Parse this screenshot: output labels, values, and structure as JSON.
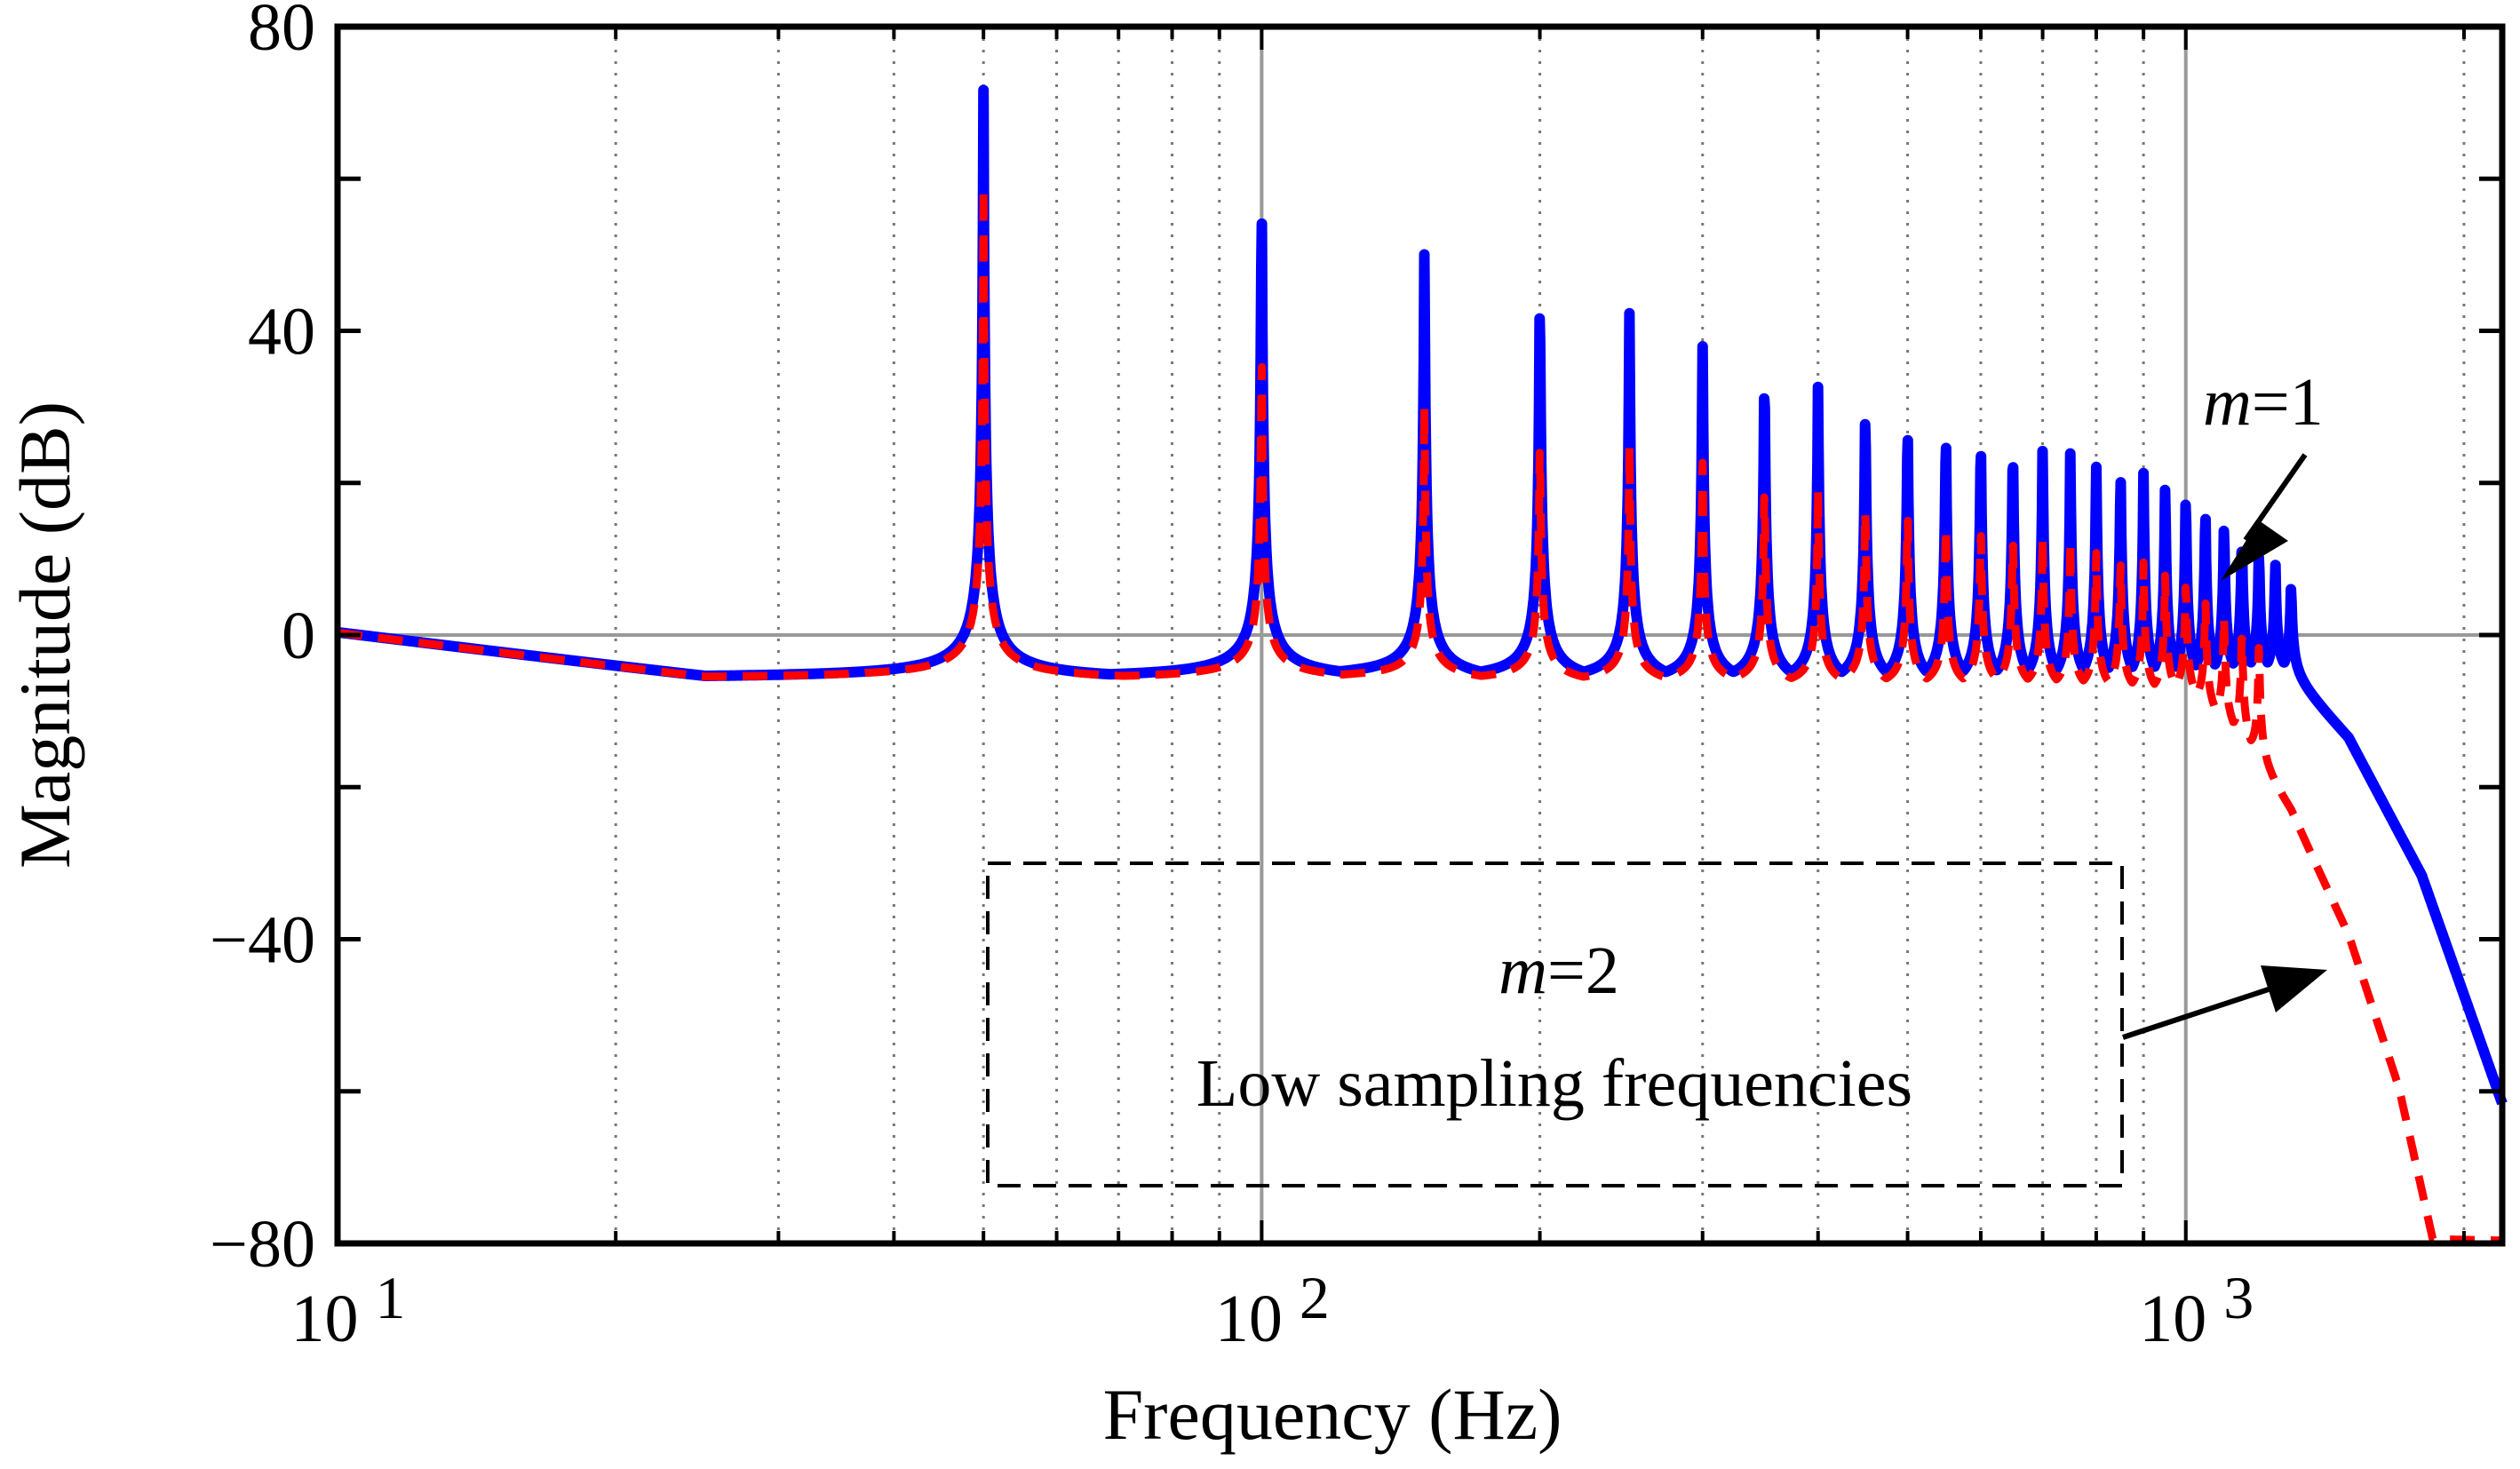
{
  "chart_data": {
    "type": "line",
    "title": "",
    "xlabel": "Frequency  (Hz)",
    "ylabel": "Magnitude  (dB)",
    "xscale": "log",
    "xlim": [
      10,
      2200
    ],
    "ylim": [
      -80,
      80
    ],
    "yticks": [
      80,
      40,
      0,
      -40,
      -80
    ],
    "ytick_labels": [
      "80",
      "40",
      "0",
      "−40",
      "−80"
    ],
    "xticks": [
      {
        "base": "10",
        "exp": "1",
        "value": 10
      },
      {
        "base": "10",
        "exp": "2",
        "value": 100
      },
      {
        "base": "10",
        "exp": "3",
        "value": 1000
      }
    ],
    "grid": true,
    "series": [
      {
        "name": "m=1",
        "color": "#0000ff",
        "style": "solid",
        "resonance_fundamental_hz": 50,
        "peaks_hz": [
          50,
          100,
          150,
          200,
          250,
          300,
          350,
          400,
          450,
          500,
          550,
          600,
          650,
          700,
          750,
          800,
          850,
          900,
          950,
          1000,
          1050,
          1100,
          1150,
          1200,
          1250,
          1300
        ],
        "peaks_db": [
          73,
          61,
          53,
          48,
          44,
          40,
          37,
          34,
          32,
          30,
          29,
          28,
          27,
          26,
          25,
          24,
          23,
          22,
          21,
          20,
          18,
          16,
          14,
          12,
          10,
          7
        ],
        "envelope_points": [
          [
            10,
            0
          ],
          [
            25,
            -6
          ],
          [
            75,
            -6
          ],
          [
            127,
            -6
          ],
          [
            300,
            -7
          ],
          [
            700,
            -8
          ],
          [
            1000,
            -8
          ],
          [
            1300,
            -6
          ],
          [
            1500,
            -14
          ],
          [
            1800,
            -32
          ],
          [
            2200,
            -62
          ]
        ]
      },
      {
        "name": "m=2",
        "color": "#ff0000",
        "style": "dashed",
        "resonance_fundamental_hz": 50,
        "peaks_hz": [
          50,
          100,
          150,
          200,
          250,
          300,
          350,
          400,
          450,
          500,
          550,
          600,
          650,
          700,
          750,
          800,
          850,
          900,
          950,
          1000,
          1050,
          1100,
          1150,
          1200
        ],
        "peaks_db": [
          60,
          40,
          32,
          28,
          26,
          24,
          22,
          20,
          19,
          18,
          17,
          16,
          15,
          14,
          13,
          12,
          11,
          10,
          9,
          8,
          6,
          4,
          2,
          0
        ],
        "envelope_points": [
          [
            10,
            0
          ],
          [
            25,
            -6
          ],
          [
            75,
            -6
          ],
          [
            127,
            -6
          ],
          [
            300,
            -7
          ],
          [
            700,
            -8
          ],
          [
            1000,
            -9
          ],
          [
            1150,
            -15
          ],
          [
            1300,
            -24
          ],
          [
            1500,
            -40
          ],
          [
            1700,
            -60
          ],
          [
            1850,
            -80
          ]
        ]
      }
    ],
    "annotations": [
      {
        "text_italic": "m",
        "text_rest": "=1",
        "target_series": "m=1"
      },
      {
        "text_italic": "m",
        "text_rest": "=2",
        "target_series": "m=2"
      },
      {
        "text": "Low sampling frequencies"
      }
    ]
  }
}
